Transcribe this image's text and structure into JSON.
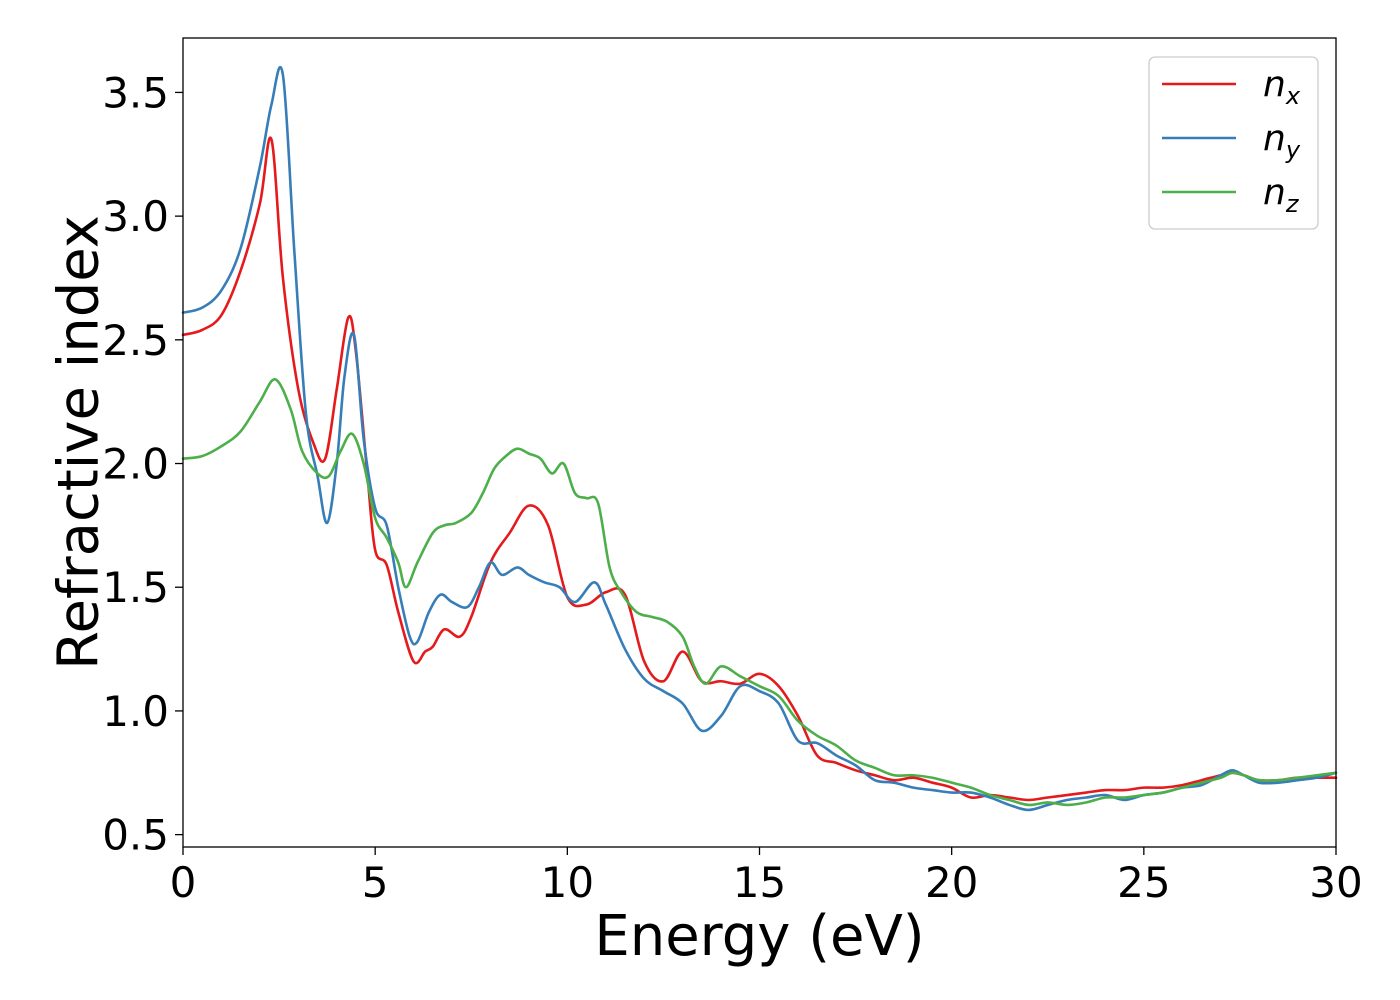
{
  "chart_data": {
    "type": "line",
    "title": "",
    "xlabel": "Energy (eV)",
    "ylabel": "Refractive index",
    "xlim": [
      0,
      30
    ],
    "ylim": [
      0.45,
      3.72
    ],
    "xticks": [
      0,
      5,
      10,
      15,
      20,
      25,
      30
    ],
    "xtick_labels": [
      "0",
      "5",
      "10",
      "15",
      "20",
      "25",
      "30"
    ],
    "yticks": [
      0.5,
      1.0,
      1.5,
      2.0,
      2.5,
      3.0,
      3.5
    ],
    "ytick_labels": [
      "0.5",
      "1.0",
      "1.5",
      "2.0",
      "2.5",
      "3.0",
      "3.5"
    ],
    "grid": false,
    "legend_position": "top-right",
    "series": [
      {
        "name": "n_x",
        "label_base": "n",
        "label_sub": "x",
        "color": "#e41a1c",
        "x": [
          0,
          0.5,
          1.0,
          1.5,
          2.0,
          2.3,
          2.6,
          3.0,
          3.4,
          3.7,
          4.0,
          4.3,
          4.5,
          4.8,
          5.0,
          5.3,
          5.6,
          6.0,
          6.3,
          6.5,
          6.8,
          7.2,
          7.5,
          8.0,
          8.5,
          9.0,
          9.5,
          10.0,
          10.5,
          11.0,
          11.5,
          12.0,
          12.5,
          13.0,
          13.5,
          14.0,
          14.5,
          15.0,
          15.5,
          16.0,
          16.5,
          17.0,
          17.5,
          18.0,
          18.5,
          19.0,
          19.5,
          20.0,
          20.5,
          21.0,
          21.5,
          22.0,
          22.5,
          23.0,
          23.5,
          24.0,
          24.5,
          25.0,
          25.5,
          26.0,
          26.5,
          27.0,
          27.3,
          27.6,
          28.0,
          28.5,
          29.0,
          29.5,
          30.0
        ],
        "y": [
          2.52,
          2.54,
          2.6,
          2.78,
          3.05,
          3.31,
          2.75,
          2.3,
          2.08,
          2.02,
          2.3,
          2.59,
          2.45,
          1.95,
          1.65,
          1.59,
          1.4,
          1.2,
          1.24,
          1.26,
          1.33,
          1.3,
          1.38,
          1.6,
          1.72,
          1.83,
          1.75,
          1.46,
          1.43,
          1.48,
          1.47,
          1.2,
          1.12,
          1.24,
          1.12,
          1.12,
          1.11,
          1.15,
          1.1,
          0.98,
          0.82,
          0.79,
          0.76,
          0.74,
          0.72,
          0.73,
          0.71,
          0.69,
          0.65,
          0.66,
          0.65,
          0.64,
          0.65,
          0.66,
          0.67,
          0.68,
          0.68,
          0.69,
          0.69,
          0.7,
          0.72,
          0.74,
          0.75,
          0.74,
          0.72,
          0.72,
          0.73,
          0.73,
          0.73
        ]
      },
      {
        "name": "n_y",
        "label_base": "n",
        "label_sub": "y",
        "color": "#377eb8",
        "x": [
          0,
          0.5,
          1.0,
          1.5,
          2.0,
          2.3,
          2.6,
          2.9,
          3.2,
          3.5,
          3.75,
          4.0,
          4.2,
          4.45,
          4.7,
          5.0,
          5.3,
          5.6,
          5.9,
          6.1,
          6.4,
          6.7,
          7.0,
          7.4,
          7.7,
          8.0,
          8.3,
          8.7,
          9.0,
          9.4,
          9.8,
          10.2,
          10.7,
          11.0,
          11.5,
          12.0,
          12.5,
          13.0,
          13.5,
          14.0,
          14.5,
          15.0,
          15.5,
          16.0,
          16.5,
          17.0,
          17.5,
          18.0,
          18.5,
          19.0,
          19.5,
          20.0,
          20.5,
          21.0,
          21.5,
          22.0,
          22.5,
          23.0,
          23.5,
          24.0,
          24.5,
          25.0,
          25.5,
          26.0,
          26.5,
          27.0,
          27.3,
          27.6,
          28.0,
          28.5,
          29.0,
          29.5,
          30.0
        ],
        "y": [
          2.61,
          2.63,
          2.7,
          2.87,
          3.2,
          3.45,
          3.57,
          2.85,
          2.2,
          1.95,
          1.76,
          2.0,
          2.35,
          2.52,
          2.1,
          1.82,
          1.75,
          1.5,
          1.3,
          1.28,
          1.4,
          1.47,
          1.44,
          1.42,
          1.5,
          1.6,
          1.55,
          1.58,
          1.55,
          1.52,
          1.5,
          1.44,
          1.52,
          1.43,
          1.25,
          1.13,
          1.08,
          1.03,
          0.92,
          0.98,
          1.1,
          1.08,
          1.03,
          0.88,
          0.87,
          0.82,
          0.78,
          0.72,
          0.71,
          0.69,
          0.68,
          0.67,
          0.67,
          0.65,
          0.62,
          0.6,
          0.62,
          0.64,
          0.65,
          0.66,
          0.64,
          0.66,
          0.67,
          0.69,
          0.7,
          0.74,
          0.76,
          0.74,
          0.71,
          0.71,
          0.72,
          0.73,
          0.75
        ]
      },
      {
        "name": "n_z",
        "label_base": "n",
        "label_sub": "z",
        "color": "#4daf4a",
        "x": [
          0,
          0.5,
          1.0,
          1.5,
          2.0,
          2.4,
          2.8,
          3.1,
          3.5,
          3.8,
          4.1,
          4.4,
          4.7,
          5.0,
          5.3,
          5.6,
          5.8,
          6.1,
          6.5,
          6.8,
          7.1,
          7.5,
          7.8,
          8.1,
          8.4,
          8.7,
          9.0,
          9.3,
          9.6,
          9.9,
          10.2,
          10.5,
          10.8,
          11.1,
          11.4,
          11.8,
          12.2,
          12.6,
          13.0,
          13.3,
          13.6,
          14.0,
          14.5,
          15.0,
          15.5,
          16.0,
          16.5,
          17.0,
          17.5,
          18.0,
          18.5,
          19.0,
          19.5,
          20.0,
          20.5,
          21.0,
          21.5,
          22.0,
          22.5,
          23.0,
          23.5,
          24.0,
          24.5,
          25.0,
          25.5,
          26.0,
          26.5,
          27.0,
          27.3,
          27.6,
          28.0,
          28.5,
          29.0,
          29.5,
          30.0
        ],
        "y": [
          2.02,
          2.03,
          2.07,
          2.13,
          2.25,
          2.34,
          2.22,
          2.05,
          1.96,
          1.95,
          2.05,
          2.12,
          2.0,
          1.78,
          1.7,
          1.6,
          1.5,
          1.6,
          1.72,
          1.75,
          1.76,
          1.8,
          1.88,
          1.98,
          2.03,
          2.06,
          2.04,
          2.02,
          1.96,
          2.0,
          1.88,
          1.86,
          1.84,
          1.58,
          1.48,
          1.4,
          1.38,
          1.36,
          1.3,
          1.18,
          1.11,
          1.18,
          1.14,
          1.1,
          1.06,
          0.96,
          0.9,
          0.86,
          0.8,
          0.77,
          0.74,
          0.74,
          0.73,
          0.71,
          0.69,
          0.66,
          0.64,
          0.62,
          0.63,
          0.62,
          0.63,
          0.65,
          0.65,
          0.66,
          0.67,
          0.69,
          0.71,
          0.73,
          0.75,
          0.74,
          0.72,
          0.72,
          0.73,
          0.74,
          0.75
        ]
      }
    ]
  }
}
